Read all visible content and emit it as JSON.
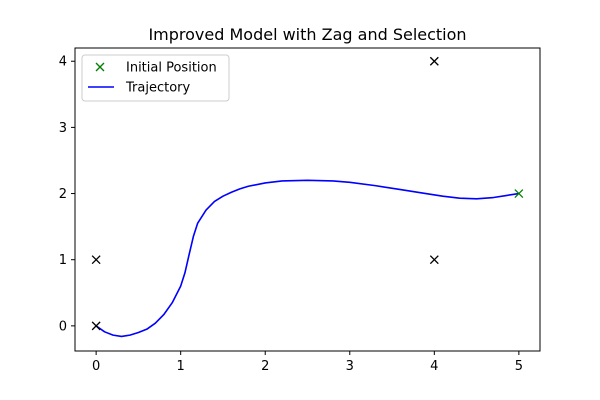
{
  "chart_data": {
    "type": "line",
    "title": "Improved Model with Zag and Selection",
    "xlabel": "",
    "ylabel": "",
    "xlim": [
      -0.25,
      5.25
    ],
    "ylim": [
      -0.38,
      4.2
    ],
    "xticks": [
      0,
      1,
      2,
      3,
      4,
      5
    ],
    "yticks": [
      0,
      1,
      2,
      3,
      4
    ],
    "grid": false,
    "legend_position": "top-left",
    "markers": {
      "name": "",
      "color": "#000000",
      "symbol": "x",
      "points": [
        {
          "x": 0,
          "y": 0
        },
        {
          "x": 0,
          "y": 1
        },
        {
          "x": 4,
          "y": 1
        },
        {
          "x": 4,
          "y": 4
        }
      ]
    },
    "series": [
      {
        "name": "Initial Position",
        "type": "scatter",
        "color": "#008000",
        "symbol": "x",
        "points": [
          {
            "x": 5,
            "y": 2
          }
        ]
      },
      {
        "name": "Trajectory",
        "type": "line",
        "color": "#0000ff",
        "points": [
          {
            "x": 0.0,
            "y": 0.0
          },
          {
            "x": 0.1,
            "y": -0.09
          },
          {
            "x": 0.2,
            "y": -0.14
          },
          {
            "x": 0.3,
            "y": -0.16
          },
          {
            "x": 0.4,
            "y": -0.14
          },
          {
            "x": 0.5,
            "y": -0.1
          },
          {
            "x": 0.6,
            "y": -0.05
          },
          {
            "x": 0.7,
            "y": 0.04
          },
          {
            "x": 0.8,
            "y": 0.17
          },
          {
            "x": 0.9,
            "y": 0.35
          },
          {
            "x": 1.0,
            "y": 0.6
          },
          {
            "x": 1.05,
            "y": 0.8
          },
          {
            "x": 1.1,
            "y": 1.08
          },
          {
            "x": 1.15,
            "y": 1.35
          },
          {
            "x": 1.2,
            "y": 1.55
          },
          {
            "x": 1.3,
            "y": 1.75
          },
          {
            "x": 1.4,
            "y": 1.88
          },
          {
            "x": 1.5,
            "y": 1.96
          },
          {
            "x": 1.6,
            "y": 2.02
          },
          {
            "x": 1.7,
            "y": 2.07
          },
          {
            "x": 1.8,
            "y": 2.11
          },
          {
            "x": 2.0,
            "y": 2.16
          },
          {
            "x": 2.2,
            "y": 2.19
          },
          {
            "x": 2.5,
            "y": 2.2
          },
          {
            "x": 2.8,
            "y": 2.19
          },
          {
            "x": 3.0,
            "y": 2.17
          },
          {
            "x": 3.3,
            "y": 2.12
          },
          {
            "x": 3.6,
            "y": 2.06
          },
          {
            "x": 3.9,
            "y": 2.0
          },
          {
            "x": 4.1,
            "y": 1.96
          },
          {
            "x": 4.3,
            "y": 1.93
          },
          {
            "x": 4.5,
            "y": 1.92
          },
          {
            "x": 4.7,
            "y": 1.94
          },
          {
            "x": 4.85,
            "y": 1.97
          },
          {
            "x": 5.0,
            "y": 2.0
          }
        ]
      }
    ]
  }
}
